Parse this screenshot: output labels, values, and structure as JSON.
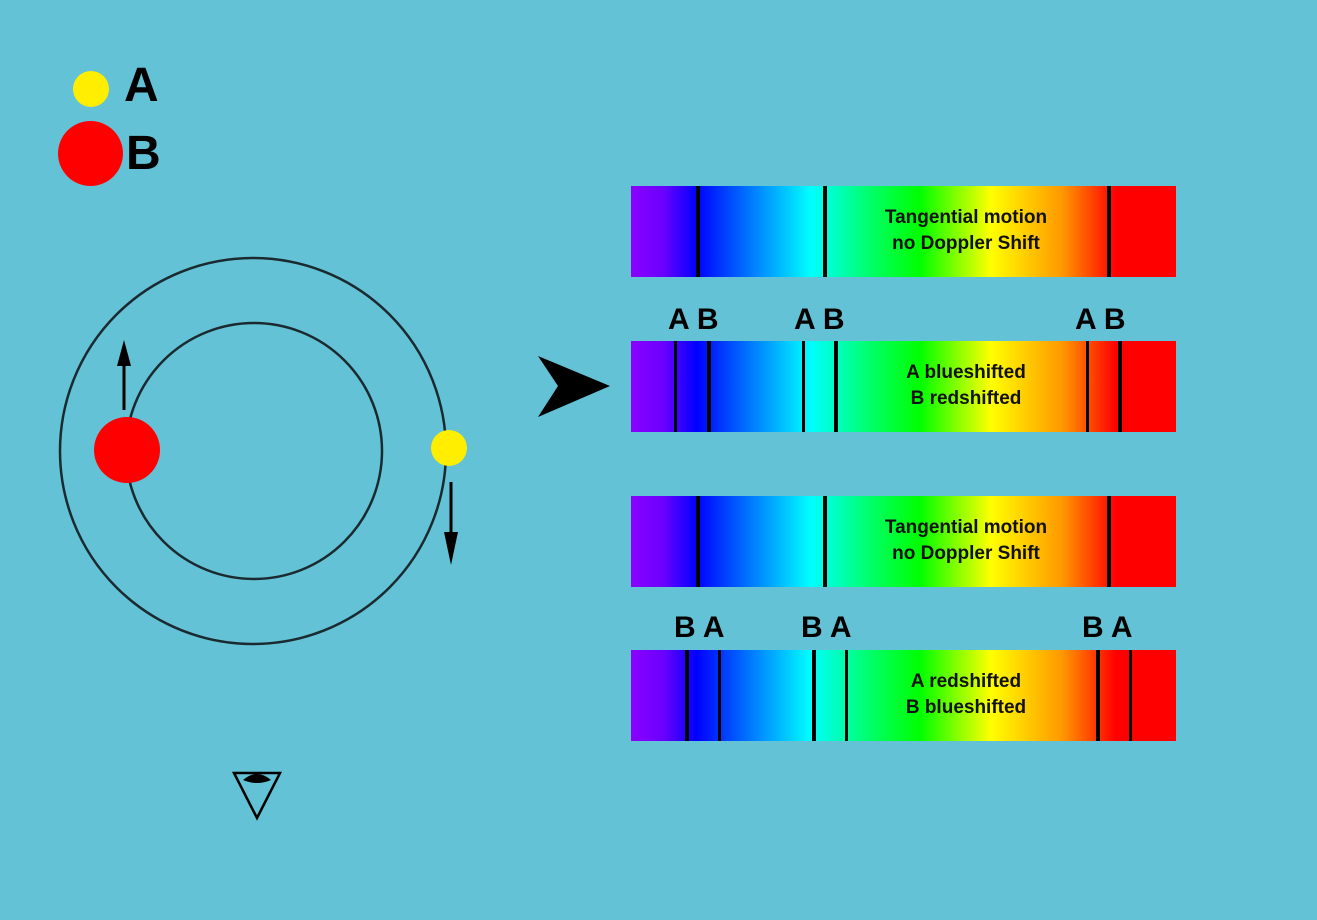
{
  "legend": {
    "a": {
      "label": "A",
      "color": "#ffee00"
    },
    "b": {
      "label": "B",
      "color": "#ff0000"
    }
  },
  "spectra": [
    {
      "text_line1": "Tangential motion",
      "text_line2": "no Doppler Shift"
    },
    {
      "text_line1": "A blueshifted",
      "text_line2": "B redshifted",
      "labels": [
        "A B",
        "A B",
        "A B"
      ]
    },
    {
      "text_line1": "Tangential motion",
      "text_line2": "no Doppler Shift"
    },
    {
      "text_line1": "A redshifted",
      "text_line2": "B blueshifted",
      "labels": [
        "B A",
        "B A",
        "B A"
      ]
    }
  ],
  "icons": {
    "pointer": "arrowhead-icon",
    "observer": "eye-icon"
  }
}
